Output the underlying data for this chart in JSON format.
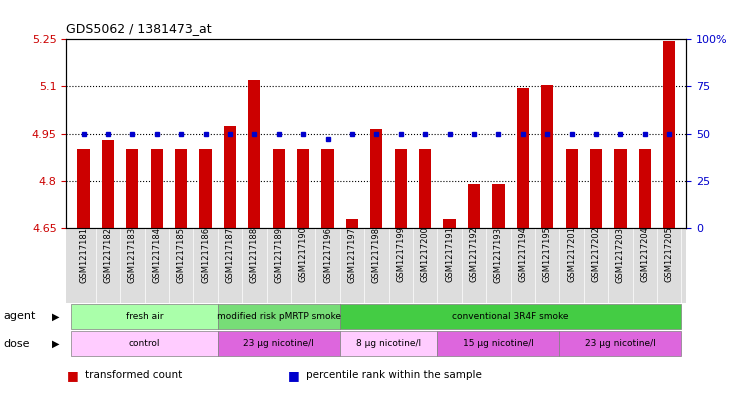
{
  "title": "GDS5062 / 1381473_at",
  "samples": [
    "GSM1217181",
    "GSM1217182",
    "GSM1217183",
    "GSM1217184",
    "GSM1217185",
    "GSM1217186",
    "GSM1217187",
    "GSM1217188",
    "GSM1217189",
    "GSM1217190",
    "GSM1217196",
    "GSM1217197",
    "GSM1217198",
    "GSM1217199",
    "GSM1217200",
    "GSM1217191",
    "GSM1217192",
    "GSM1217193",
    "GSM1217194",
    "GSM1217195",
    "GSM1217201",
    "GSM1217202",
    "GSM1217203",
    "GSM1217204",
    "GSM1217205"
  ],
  "bar_values": [
    4.9,
    4.93,
    4.9,
    4.9,
    4.9,
    4.9,
    4.975,
    5.12,
    4.9,
    4.9,
    4.9,
    4.68,
    4.965,
    4.9,
    4.9,
    4.68,
    4.79,
    4.79,
    5.095,
    5.105,
    4.9,
    4.9,
    4.9,
    4.9,
    5.245
  ],
  "percentile_values": [
    50,
    50,
    50,
    50,
    50,
    50,
    50,
    50,
    50,
    50,
    47,
    50,
    50,
    50,
    50,
    50,
    50,
    50,
    50,
    50,
    50,
    50,
    50,
    50,
    50
  ],
  "ylim_left": [
    4.65,
    5.25
  ],
  "ylim_right": [
    0,
    100
  ],
  "yticks_left": [
    4.65,
    4.8,
    4.95,
    5.1,
    5.25
  ],
  "yticks_right": [
    0,
    25,
    50,
    75,
    100
  ],
  "ytick_labels_left": [
    "4.65",
    "4.8",
    "4.95",
    "5.1",
    "5.25"
  ],
  "ytick_labels_right": [
    "0",
    "25",
    "50",
    "75",
    "100%"
  ],
  "hlines": [
    4.8,
    4.95,
    5.1
  ],
  "bar_color": "#CC0000",
  "percentile_color": "#0000CC",
  "bar_bottom": 4.65,
  "agent_groups": [
    {
      "label": "fresh air",
      "start": 0,
      "end": 6,
      "color": "#AAFFAA"
    },
    {
      "label": "modified risk pMRTP smoke",
      "start": 6,
      "end": 11,
      "color": "#77DD77"
    },
    {
      "label": "conventional 3R4F smoke",
      "start": 11,
      "end": 25,
      "color": "#44CC44"
    }
  ],
  "dose_groups": [
    {
      "label": "control",
      "start": 0,
      "end": 6,
      "color": "#FFCCFF"
    },
    {
      "label": "23 μg nicotine/l",
      "start": 6,
      "end": 11,
      "color": "#DD66DD"
    },
    {
      "label": "8 μg nicotine/l",
      "start": 11,
      "end": 15,
      "color": "#FFCCFF"
    },
    {
      "label": "15 μg nicotine/l",
      "start": 15,
      "end": 20,
      "color": "#DD66DD"
    },
    {
      "label": "23 μg nicotine/l",
      "start": 20,
      "end": 25,
      "color": "#DD66DD"
    }
  ],
  "legend_items": [
    {
      "label": "transformed count",
      "color": "#CC0000"
    },
    {
      "label": "percentile rank within the sample",
      "color": "#0000CC"
    }
  ],
  "agent_label": "agent",
  "dose_label": "dose",
  "plot_bg_color": "#FFFFFF",
  "fig_bg_color": "#FFFFFF",
  "xtick_bg_color": "#DDDDDD"
}
